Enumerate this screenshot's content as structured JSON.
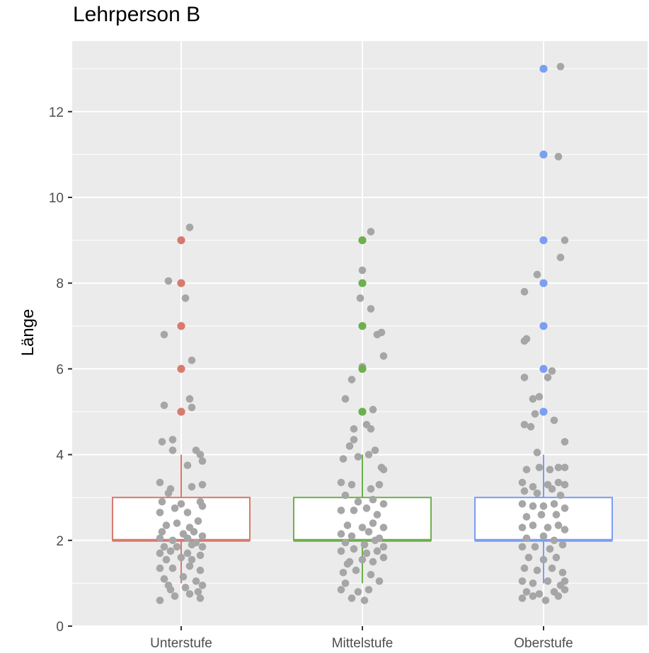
{
  "chart_data": {
    "type": "boxplot",
    "title": "Lehrperson B",
    "xlabel": "",
    "ylabel": "Länge",
    "ylim": [
      0,
      13.5
    ],
    "yticks": [
      0,
      2,
      4,
      6,
      8,
      10,
      12
    ],
    "categories": [
      "Unterstufe",
      "Mittelstufe",
      "Oberstufe"
    ],
    "grid": true,
    "legend": "none",
    "series": [
      {
        "category": "Unterstufe",
        "color": "#d87a6f",
        "box": {
          "min": 1,
          "q1": 2,
          "median": 2,
          "q3": 3,
          "max": 4
        },
        "outliers": [
          5,
          6,
          7,
          8,
          9
        ],
        "jitter": [
          [
            0.04,
            9.3
          ],
          [
            -0.06,
            8.05
          ],
          [
            -0.08,
            6.8
          ],
          [
            0.02,
            7.65
          ],
          [
            0.05,
            6.2
          ],
          [
            -0.08,
            5.15
          ],
          [
            0.05,
            5.1
          ],
          [
            0.04,
            5.3
          ],
          [
            -0.09,
            4.3
          ],
          [
            -0.04,
            4.35
          ],
          [
            0.07,
            4.1
          ],
          [
            0.1,
            3.85
          ],
          [
            -0.04,
            4.1
          ],
          [
            0.09,
            4.0
          ],
          [
            0.03,
            3.75
          ],
          [
            -0.1,
            3.35
          ],
          [
            -0.05,
            3.2
          ],
          [
            0.05,
            3.25
          ],
          [
            0.1,
            3.3
          ],
          [
            -0.06,
            3.1
          ],
          [
            -0.09,
            2.9
          ],
          [
            0.0,
            2.85
          ],
          [
            0.09,
            2.9
          ],
          [
            -0.03,
            2.75
          ],
          [
            0.03,
            2.65
          ],
          [
            0.1,
            2.8
          ],
          [
            -0.1,
            2.65
          ],
          [
            -0.07,
            2.35
          ],
          [
            -0.02,
            2.4
          ],
          [
            0.04,
            2.3
          ],
          [
            0.08,
            2.45
          ],
          [
            -0.09,
            2.2
          ],
          [
            0.01,
            2.15
          ],
          [
            0.06,
            2.2
          ],
          [
            0.1,
            2.1
          ],
          [
            -0.1,
            2.05
          ],
          [
            -0.04,
            2.0
          ],
          [
            0.03,
            2.05
          ],
          [
            0.07,
            1.95
          ],
          [
            -0.08,
            1.85
          ],
          [
            -0.02,
            1.85
          ],
          [
            0.05,
            1.9
          ],
          [
            0.1,
            1.85
          ],
          [
            -0.1,
            1.7
          ],
          [
            -0.05,
            1.75
          ],
          [
            0.03,
            1.7
          ],
          [
            0.09,
            1.65
          ],
          [
            -0.07,
            1.55
          ],
          [
            0.0,
            1.6
          ],
          [
            0.05,
            1.55
          ],
          [
            -0.1,
            1.35
          ],
          [
            -0.04,
            1.35
          ],
          [
            0.04,
            1.4
          ],
          [
            0.09,
            1.3
          ],
          [
            -0.08,
            1.1
          ],
          [
            0.01,
            1.15
          ],
          [
            0.07,
            1.05
          ],
          [
            -0.05,
            0.85
          ],
          [
            0.02,
            0.9
          ],
          [
            0.08,
            0.8
          ],
          [
            -0.1,
            0.6
          ],
          [
            -0.03,
            0.7
          ],
          [
            0.04,
            0.75
          ],
          [
            0.09,
            0.65
          ],
          [
            -0.06,
            0.95
          ],
          [
            0.1,
            0.95
          ]
        ]
      },
      {
        "category": "Mittelstufe",
        "color": "#6db04d",
        "box": {
          "min": 1,
          "q1": 2,
          "median": 2,
          "q3": 3,
          "max": 4
        },
        "outliers": [
          5,
          6,
          7,
          8,
          9
        ],
        "jitter": [
          [
            0.04,
            9.2
          ],
          [
            0.0,
            8.3
          ],
          [
            -0.01,
            7.65
          ],
          [
            0.04,
            7.4
          ],
          [
            0.07,
            6.8
          ],
          [
            0.09,
            6.85
          ],
          [
            0.1,
            6.3
          ],
          [
            0.0,
            6.05
          ],
          [
            -0.05,
            5.75
          ],
          [
            -0.08,
            5.3
          ],
          [
            0.05,
            5.05
          ],
          [
            -0.04,
            4.6
          ],
          [
            0.02,
            4.7
          ],
          [
            0.04,
            4.6
          ],
          [
            -0.06,
            4.2
          ],
          [
            -0.04,
            4.35
          ],
          [
            0.06,
            4.1
          ],
          [
            0.09,
            3.7
          ],
          [
            0.1,
            3.65
          ],
          [
            -0.09,
            3.9
          ],
          [
            -0.02,
            3.95
          ],
          [
            0.03,
            4.0
          ],
          [
            -0.1,
            3.35
          ],
          [
            -0.05,
            3.3
          ],
          [
            0.04,
            3.2
          ],
          [
            0.08,
            3.3
          ],
          [
            -0.08,
            3.05
          ],
          [
            -0.02,
            2.9
          ],
          [
            0.05,
            2.95
          ],
          [
            0.1,
            2.85
          ],
          [
            -0.1,
            2.7
          ],
          [
            -0.04,
            2.7
          ],
          [
            0.02,
            2.75
          ],
          [
            0.07,
            2.6
          ],
          [
            -0.07,
            2.35
          ],
          [
            0.0,
            2.3
          ],
          [
            0.05,
            2.4
          ],
          [
            0.1,
            2.3
          ],
          [
            -0.1,
            2.15
          ],
          [
            -0.05,
            2.1
          ],
          [
            0.03,
            2.2
          ],
          [
            0.08,
            2.05
          ],
          [
            -0.08,
            1.95
          ],
          [
            0.01,
            1.9
          ],
          [
            0.06,
            2.0
          ],
          [
            0.1,
            1.85
          ],
          [
            -0.1,
            1.75
          ],
          [
            -0.04,
            1.8
          ],
          [
            0.02,
            1.7
          ],
          [
            0.07,
            1.75
          ],
          [
            -0.06,
            1.5
          ],
          [
            0.0,
            1.55
          ],
          [
            0.05,
            1.5
          ],
          [
            -0.09,
            1.25
          ],
          [
            -0.03,
            1.3
          ],
          [
            0.04,
            1.2
          ],
          [
            -0.08,
            1.0
          ],
          [
            0.08,
            1.05
          ],
          [
            -0.1,
            0.85
          ],
          [
            -0.02,
            0.8
          ],
          [
            0.03,
            0.85
          ],
          [
            -0.05,
            0.65
          ],
          [
            0.01,
            0.6
          ],
          [
            -0.07,
            1.45
          ],
          [
            0.1,
            1.6
          ]
        ]
      },
      {
        "category": "Oberstufe",
        "color": "#7b9ef2",
        "box": {
          "min": 1,
          "q1": 2,
          "median": 2,
          "q3": 3,
          "max": 4
        },
        "outliers": [
          5,
          6,
          7,
          8,
          9,
          11,
          13
        ],
        "jitter": [
          [
            0.08,
            13.05
          ],
          [
            0.07,
            10.95
          ],
          [
            0.1,
            9.0
          ],
          [
            0.08,
            8.6
          ],
          [
            -0.03,
            8.2
          ],
          [
            -0.09,
            7.8
          ],
          [
            -0.08,
            6.7
          ],
          [
            -0.09,
            6.65
          ],
          [
            0.04,
            5.95
          ],
          [
            0.02,
            5.8
          ],
          [
            -0.09,
            5.8
          ],
          [
            -0.05,
            5.3
          ],
          [
            -0.02,
            5.35
          ],
          [
            -0.04,
            4.95
          ],
          [
            0.05,
            4.8
          ],
          [
            -0.09,
            4.7
          ],
          [
            -0.06,
            4.65
          ],
          [
            0.1,
            4.3
          ],
          [
            -0.03,
            4.05
          ],
          [
            0.07,
            3.7
          ],
          [
            0.1,
            3.7
          ],
          [
            -0.08,
            3.65
          ],
          [
            -0.02,
            3.7
          ],
          [
            0.03,
            3.65
          ],
          [
            -0.1,
            3.35
          ],
          [
            -0.05,
            3.25
          ],
          [
            0.02,
            3.3
          ],
          [
            0.07,
            3.35
          ],
          [
            0.1,
            3.3
          ],
          [
            -0.09,
            3.15
          ],
          [
            -0.03,
            3.1
          ],
          [
            0.04,
            3.2
          ],
          [
            0.08,
            3.05
          ],
          [
            -0.1,
            2.85
          ],
          [
            -0.05,
            2.8
          ],
          [
            0.0,
            2.8
          ],
          [
            0.05,
            2.85
          ],
          [
            0.1,
            2.75
          ],
          [
            -0.08,
            2.55
          ],
          [
            -0.01,
            2.6
          ],
          [
            0.06,
            2.6
          ],
          [
            -0.1,
            2.3
          ],
          [
            -0.05,
            2.35
          ],
          [
            0.02,
            2.3
          ],
          [
            0.07,
            2.35
          ],
          [
            0.1,
            2.25
          ],
          [
            -0.08,
            2.05
          ],
          [
            0.0,
            2.1
          ],
          [
            0.05,
            2.0
          ],
          [
            -0.1,
            1.85
          ],
          [
            -0.04,
            1.85
          ],
          [
            0.03,
            1.8
          ],
          [
            0.09,
            1.9
          ],
          [
            -0.07,
            1.6
          ],
          [
            0.0,
            1.55
          ],
          [
            0.06,
            1.6
          ],
          [
            -0.09,
            1.35
          ],
          [
            -0.03,
            1.3
          ],
          [
            0.04,
            1.35
          ],
          [
            0.09,
            1.25
          ],
          [
            -0.1,
            1.05
          ],
          [
            -0.05,
            1.0
          ],
          [
            0.02,
            1.05
          ],
          [
            0.08,
            0.95
          ],
          [
            0.1,
            1.05
          ],
          [
            -0.08,
            0.8
          ],
          [
            -0.02,
            0.75
          ],
          [
            0.05,
            0.8
          ],
          [
            -0.1,
            0.65
          ],
          [
            -0.05,
            0.7
          ],
          [
            0.01,
            0.6
          ],
          [
            0.07,
            0.7
          ],
          [
            0.1,
            0.85
          ]
        ]
      }
    ]
  }
}
